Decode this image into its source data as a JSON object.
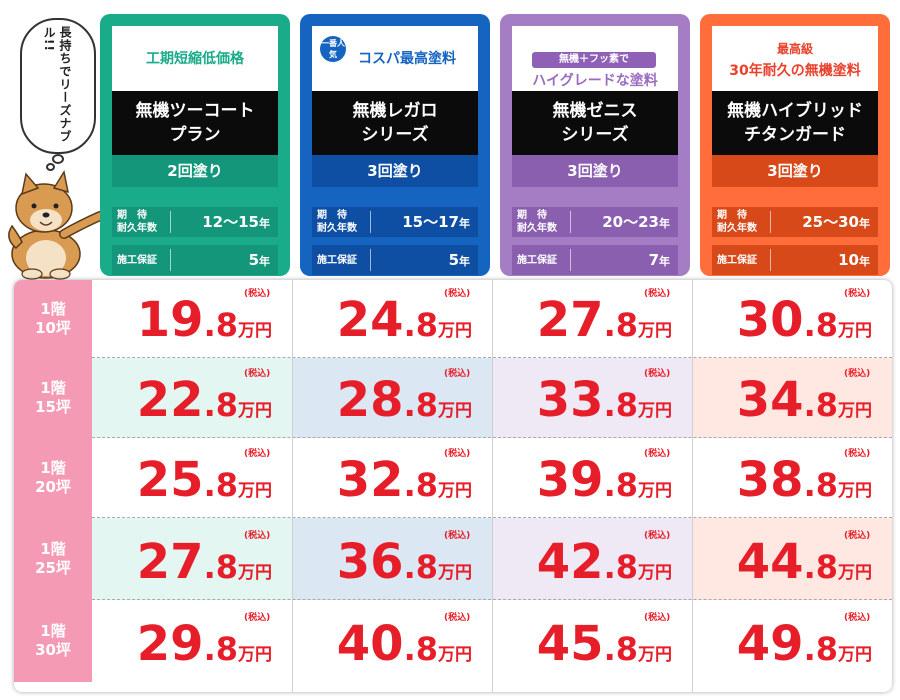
{
  "bubble_text": "長持ちでリーズナブル!!",
  "labels": {
    "expected_line1": "期　待",
    "expected_line2": "耐久年数",
    "warranty": "施工保証",
    "tax": "(税込)",
    "unit": "万円"
  },
  "plans": [
    {
      "subtitle": "工期短縮低価格",
      "name_line1": "無機ツーコート",
      "name_line2": "プラン",
      "coats": "2回塗り",
      "years": "12〜15",
      "years_unit": "年",
      "warranty": "5",
      "warranty_unit": "年",
      "color": "#1aab8a",
      "subtitle_color": "#1aab8a"
    },
    {
      "badge": "一番人気",
      "subtitle": "コスパ最高塗料",
      "name_line1": "無機レガロ",
      "name_line2": "シリーズ",
      "coats": "3回塗り",
      "years": "15〜17",
      "years_unit": "年",
      "warranty": "5",
      "warranty_unit": "年",
      "color": "#1565c0",
      "subtitle_color": "#1565c0"
    },
    {
      "top_note": "無機＋フッ素で",
      "subtitle": "ハイグレードな塗料",
      "name_line1": "無機ゼニス",
      "name_line2": "シリーズ",
      "coats": "3回塗り",
      "years": "20〜23",
      "years_unit": "年",
      "warranty": "7",
      "warranty_unit": "年",
      "color": "#a47dc4",
      "subtitle_color": "#9a6cc0"
    },
    {
      "top_note": "最高級",
      "subtitle": "30年耐久の無機塗料",
      "name_line1": "無機ハイブリッド",
      "name_line2": "チタンガード",
      "coats": "3回塗り",
      "years": "25〜30",
      "years_unit": "年",
      "warranty": "10",
      "warranty_unit": "年",
      "color": "#ff6d3a",
      "subtitle_color": "#e8412c"
    }
  ],
  "rows": [
    {
      "floor": "1階",
      "area": "10坪",
      "prices": [
        [
          "19",
          ".8"
        ],
        [
          "24",
          ".8"
        ],
        [
          "27",
          ".8"
        ],
        [
          "30",
          ".8"
        ]
      ]
    },
    {
      "floor": "1階",
      "area": "15坪",
      "prices": [
        [
          "22",
          ".8"
        ],
        [
          "28",
          ".8"
        ],
        [
          "33",
          ".8"
        ],
        [
          "34",
          ".8"
        ]
      ]
    },
    {
      "floor": "1階",
      "area": "20坪",
      "prices": [
        [
          "25",
          ".8"
        ],
        [
          "32",
          ".8"
        ],
        [
          "39",
          ".8"
        ],
        [
          "38",
          ".8"
        ]
      ]
    },
    {
      "floor": "1階",
      "area": "25坪",
      "prices": [
        [
          "27",
          ".8"
        ],
        [
          "36",
          ".8"
        ],
        [
          "42",
          ".8"
        ],
        [
          "44",
          ".8"
        ]
      ]
    },
    {
      "floor": "1階",
      "area": "30坪",
      "prices": [
        [
          "29",
          ".8"
        ],
        [
          "40",
          ".8"
        ],
        [
          "45",
          ".8"
        ],
        [
          "49",
          ".8"
        ]
      ]
    }
  ],
  "tint_colors": [
    "#e3f6f1",
    "#dbe8f4",
    "#efe8f5",
    "#ffe8e1"
  ]
}
